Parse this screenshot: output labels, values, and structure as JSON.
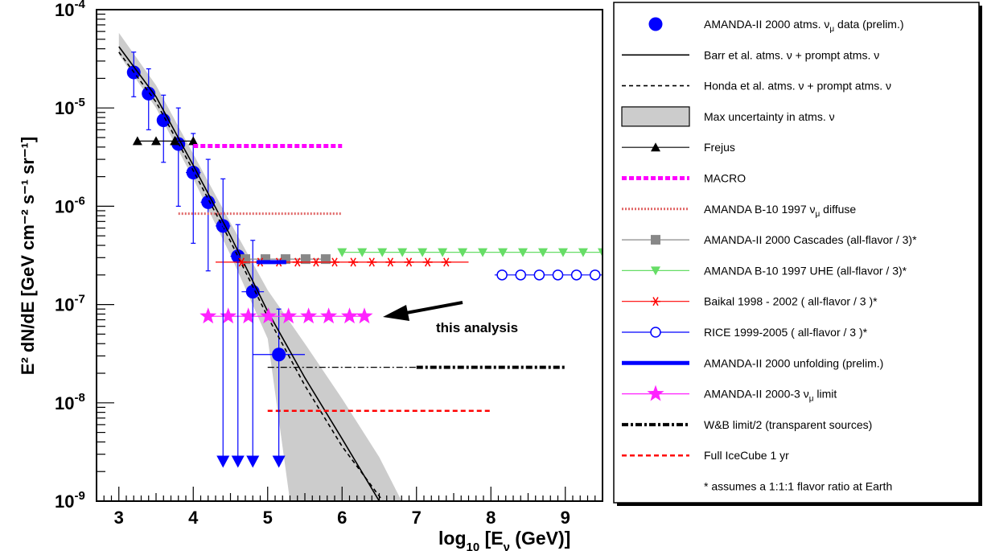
{
  "chart_data": {
    "type": "scatter",
    "title": "",
    "xlabel": {
      "pre": "log",
      "sub": "10",
      "mid": " [E",
      "sub2": "ν",
      "post": " (GeV)]"
    },
    "ylabel": "E² dN/dE [GeV cm⁻² s⁻¹ sr⁻¹]",
    "xlim": [
      2.7,
      9.5
    ],
    "ylim": [
      1e-09,
      0.0001
    ],
    "yscale": "log",
    "x_ticks": [
      "3",
      "4",
      "5",
      "6",
      "7",
      "8",
      "9"
    ],
    "y_ticks": [
      {
        "base": "10",
        "exp": "-9"
      },
      {
        "base": "10",
        "exp": "-8"
      },
      {
        "base": "10",
        "exp": "-7"
      },
      {
        "base": "10",
        "exp": "-6"
      },
      {
        "base": "10",
        "exp": "-5"
      },
      {
        "base": "10",
        "exp": "-4"
      }
    ],
    "legend_position": "right",
    "annotation": "this analysis",
    "footnote": "* assumes a 1:1:1 flavor ratio at Earth",
    "series": [
      {
        "name": "AMANDA-II 2000 atms. νμ data (prelim.)",
        "legend": {
          "pre": "AMANDA-II 2000 atms. ",
          "nu": "ν",
          "sub": "μ",
          "post": " data (prelim.)"
        },
        "kind": "points",
        "color": "#0000ff",
        "marker": "circle",
        "x": [
          3.2,
          3.4,
          3.6,
          3.8,
          4.0,
          4.2,
          4.4,
          4.6,
          4.8,
          5.15
        ],
        "y": [
          2.3e-05,
          1.4e-05,
          7.5e-06,
          4.3e-06,
          2.2e-06,
          1.1e-06,
          6.3e-07,
          3.1e-07,
          1.35e-07,
          3.1e-08
        ],
        "xerr": [
          0.05,
          0.07,
          0.07,
          0.07,
          0.1,
          0.1,
          0.1,
          0.1,
          0.15,
          0.35
        ],
        "y_hi": [
          3.7e-05,
          2.5e-05,
          1.35e-05,
          1e-05,
          5.5e-06,
          3e-06,
          1.9e-06,
          6.5e-07,
          4.5e-07,
          9e-08
        ],
        "y_lo": [
          1.3e-05,
          6e-06,
          2.8e-06,
          1e-06,
          4.2e-07,
          2.2e-07,
          null,
          null,
          null,
          null
        ]
      },
      {
        "name": "Barr et al. atms. ν + prompt atms. ν",
        "legend": {
          "pre": "Barr et al. atms. ",
          "nu": "ν",
          "post": " + prompt atms. ν"
        },
        "kind": "line",
        "color": "#000000",
        "dash": "none",
        "x": [
          3.0,
          3.5,
          4.0,
          4.5,
          5.0,
          5.5,
          6.0,
          6.5
        ],
        "y": [
          4.2e-05,
          1.3e-05,
          2.6e-06,
          5e-07,
          8.5e-08,
          1.8e-08,
          4.3e-09,
          1e-09
        ]
      },
      {
        "name": "Honda et al. atms. ν + prompt atms. ν",
        "legend": {
          "pre": "Honda et al. atms. ",
          "nu": "ν",
          "post": " + prompt atms. ν"
        },
        "kind": "line",
        "color": "#000000",
        "dash": "5,4",
        "x": [
          3.0,
          3.5,
          4.0,
          4.5,
          5.0,
          5.5,
          6.0,
          6.55
        ],
        "y": [
          3.7e-05,
          1.15e-05,
          2.3e-06,
          4.4e-07,
          7.5e-08,
          1.5e-08,
          3.6e-09,
          1e-09
        ]
      },
      {
        "name": "Max uncertainty in atms. ν",
        "legend": {
          "pre": "Max uncertainty in atms. ",
          "nu": "ν",
          "post": ""
        },
        "kind": "band",
        "color": "#cccccc",
        "x": [
          3.0,
          3.5,
          4.0,
          4.5,
          5.0,
          5.5,
          6.0,
          6.5
        ],
        "y_upper": [
          5.8e-05,
          1.7e-05,
          3.4e-06,
          6.8e-07,
          1.4e-07,
          4e-08,
          1.1e-08,
          2.8e-09
        ],
        "y_lower": [
          3.5e-05,
          1e-05,
          1.9e-06,
          3.2e-07,
          4.5e-08,
          5e-09,
          1e-09,
          1e-09
        ],
        "x_end_upper": 6.8,
        "x_end_lower": 5.3
      },
      {
        "name": "Frejus",
        "legend": {
          "pre": "Frejus"
        },
        "kind": "markers_line",
        "color": "#000000",
        "marker": "triangle-up",
        "x": [
          3.25,
          3.5,
          3.75,
          4.0
        ],
        "y": [
          4.6e-06,
          4.6e-06,
          4.6e-06,
          4.6e-06
        ]
      },
      {
        "name": "MACRO",
        "legend": {
          "pre": "MACRO"
        },
        "kind": "hline",
        "color": "#ff00ff",
        "dash": "6,3",
        "width": 5,
        "x": [
          4.0,
          6.0
        ],
        "y": [
          4.1e-06,
          4.1e-06
        ]
      },
      {
        "name": "AMANDA B-10 1997 νμ diffuse",
        "legend": {
          "pre": "AMANDA B-10 1997 ",
          "nu": "ν",
          "sub": "μ",
          "post": " diffuse"
        },
        "kind": "hline",
        "color": "#e06666",
        "dash": "2,2",
        "width": 3,
        "x": [
          3.8,
          6.0
        ],
        "y": [
          8.4e-07,
          8.4e-07
        ]
      },
      {
        "name": "AMANDA-II 2000 Cascades (all-flavor / 3)*",
        "legend": {
          "pre": "AMANDA-II 2000 Cascades (all-flavor / 3)*"
        },
        "kind": "markers_line",
        "color": "#888888",
        "marker": "square",
        "x": [
          4.7,
          4.97,
          5.24,
          5.51,
          5.78
        ],
        "y": [
          2.9e-07,
          2.9e-07,
          2.9e-07,
          2.9e-07,
          2.9e-07
        ]
      },
      {
        "name": "AMANDA B-10 1997 UHE (all-flavor / 3)*",
        "legend": {
          "pre": "AMANDA B-10 1997 UHE (all-flavor / 3)*"
        },
        "kind": "markers_line",
        "color": "#66dd66",
        "marker": "triangle-down",
        "x": [
          6.0,
          6.27,
          6.54,
          6.81,
          7.08,
          7.35,
          7.62,
          7.89,
          8.16,
          8.43,
          8.7,
          8.97,
          9.24,
          9.5
        ],
        "y": [
          3.4e-07,
          3.4e-07,
          3.4e-07,
          3.4e-07,
          3.4e-07,
          3.4e-07,
          3.4e-07,
          3.4e-07,
          3.4e-07,
          3.4e-07,
          3.4e-07,
          3.4e-07,
          3.4e-07,
          3.4e-07
        ]
      },
      {
        "name": "Baikal 1998 - 2002 ( all-flavor / 3 )*",
        "legend": {
          "pre": "Baikal 1998 - 2002 ( all-flavor / 3 )*"
        },
        "kind": "markers_line",
        "color": "#ff0000",
        "marker": "star6",
        "x": [
          4.65,
          4.9,
          5.15,
          5.4,
          5.65,
          5.9,
          6.15,
          6.4,
          6.65,
          6.9,
          7.15,
          7.4
        ],
        "y": [
          2.7e-07,
          2.7e-07,
          2.7e-07,
          2.7e-07,
          2.7e-07,
          2.7e-07,
          2.7e-07,
          2.7e-07,
          2.7e-07,
          2.7e-07,
          2.7e-07,
          2.7e-07
        ],
        "line_x": [
          4.3,
          7.7
        ]
      },
      {
        "name": "RICE 1999-2005 ( all-flavor / 3 )*",
        "legend": {
          "pre": "RICE 1999-2005 ( all-flavor / 3 )*"
        },
        "kind": "markers_line",
        "color": "#0000ff",
        "marker": "open-circle",
        "x": [
          8.15,
          8.4,
          8.65,
          8.9,
          9.15,
          9.4
        ],
        "y": [
          2e-07,
          2e-07,
          2e-07,
          2e-07,
          2e-07,
          2e-07
        ],
        "line_x": [
          8.05,
          9.5
        ]
      },
      {
        "name": "AMANDA-II 2000 unfolding (prelim.)",
        "legend": {
          "pre": "AMANDA-II 2000 unfolding (prelim.)"
        },
        "kind": "hline",
        "color": "#0000ff",
        "dash": "none",
        "width": 5,
        "x": [
          4.85,
          5.25
        ],
        "y": [
          2.7e-07,
          2.7e-07
        ]
      },
      {
        "name": "AMANDA-II 2000-3 νμ limit",
        "legend": {
          "pre": "AMANDA-II 2000-3 ",
          "nu": "ν",
          "sub": "μ",
          "post": " limit"
        },
        "kind": "markers_line",
        "color": "#ff22ff",
        "marker": "star5",
        "x": [
          4.2,
          4.47,
          4.74,
          5.01,
          5.28,
          5.55,
          5.82,
          6.1,
          6.3
        ],
        "y": [
          7.6e-08,
          7.6e-08,
          7.6e-08,
          7.6e-08,
          7.6e-08,
          7.6e-08,
          7.6e-08,
          7.6e-08,
          7.6e-08
        ],
        "line_x": [
          4.15,
          6.35
        ]
      },
      {
        "name": "W&B limit/2 (transparent sources)",
        "legend": {
          "pre": "W&B limit/2 (transparent sources)"
        },
        "kind": "wb",
        "color": "#000000",
        "x": [
          5.0,
          9.0
        ],
        "y": [
          2.3e-08,
          2.3e-08
        ],
        "thick_from": 7.0
      },
      {
        "name": "Full IceCube 1 yr",
        "legend": {
          "pre": "Full IceCube 1 yr"
        },
        "kind": "hline",
        "color": "#ff0000",
        "dash": "6,4",
        "width": 2.5,
        "x": [
          5.0,
          8.0
        ],
        "y": [
          8.3e-09,
          8.3e-09
        ]
      },
      {
        "name": "upper limits",
        "kind": "arrows",
        "color": "#0000ff",
        "x": [
          4.4,
          4.6,
          4.8,
          5.15
        ],
        "y_from": [
          6.3e-07,
          3.1e-07,
          1.35e-07,
          3.1e-08
        ],
        "y_to": [
          2.4e-09,
          2.4e-09,
          2.4e-09,
          2.4e-09
        ]
      }
    ]
  }
}
